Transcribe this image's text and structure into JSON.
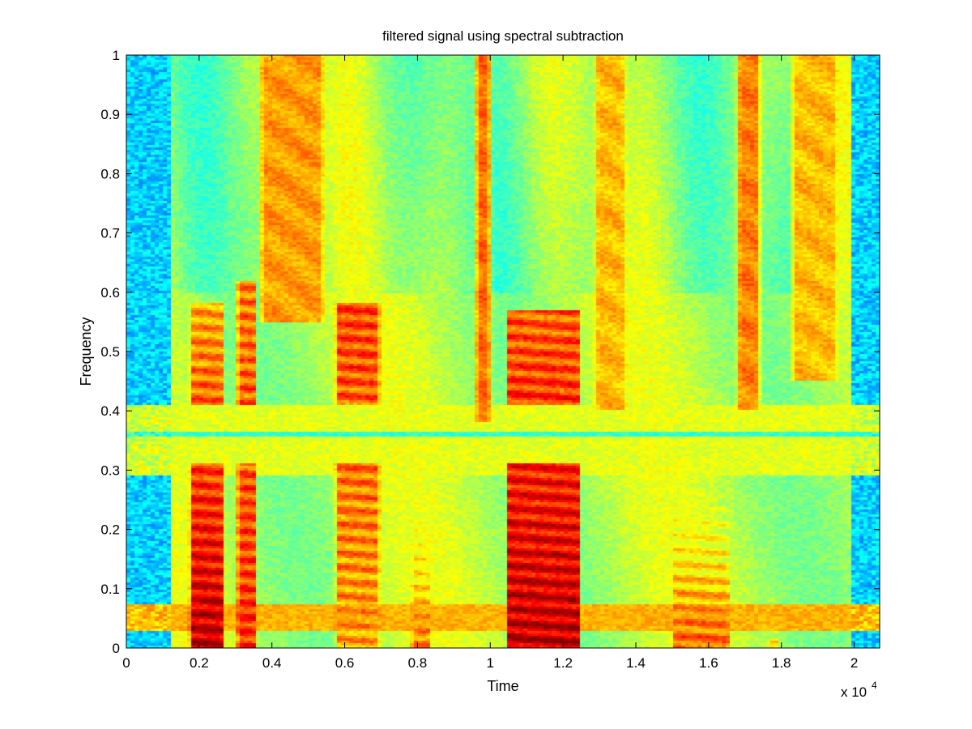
{
  "chart_data": {
    "type": "heatmap",
    "title": "filtered signal using spectral subtraction",
    "xlabel": "Time",
    "ylabel": "Frequency",
    "x_multiplier_label": "x 10",
    "x_multiplier_exponent": "4",
    "xlim": [
      0,
      20700
    ],
    "ylim": [
      0,
      1
    ],
    "xticks": [
      0,
      0.2,
      0.4,
      0.6,
      0.8,
      1,
      1.2,
      1.4,
      1.6,
      1.8,
      2
    ],
    "xtick_labels": [
      "0",
      "0.2",
      "0.4",
      "0.6",
      "0.8",
      "1",
      "1.2",
      "1.4",
      "1.6",
      "1.8",
      "2"
    ],
    "yticks": [
      0,
      0.1,
      0.2,
      0.3,
      0.4,
      0.5,
      0.6,
      0.7,
      0.8,
      0.9,
      1
    ],
    "ytick_labels": [
      "0",
      "0.1",
      "0.2",
      "0.3",
      "0.4",
      "0.5",
      "0.6",
      "0.7",
      "0.8",
      "0.9",
      "1"
    ],
    "colormap": "jet",
    "grid": false,
    "x_unit_scale": 10000,
    "speech_segments": [
      {
        "t0": 0.17,
        "t1": 0.27,
        "f_top": 0.58,
        "low_intensity": 1.0,
        "high_intensity": 0.78
      },
      {
        "t0": 0.3,
        "t1": 0.36,
        "f_top": 0.62,
        "low_intensity": 0.9,
        "high_intensity": 0.82
      },
      {
        "t0": 0.57,
        "t1": 0.7,
        "f_top": 0.58,
        "low_intensity": 0.78,
        "high_intensity": 0.88
      },
      {
        "t0": 0.78,
        "t1": 0.84,
        "f_top": 0.27,
        "low_intensity": 0.82,
        "high_intensity": 0.55
      },
      {
        "t0": 1.04,
        "t1": 1.25,
        "f_top": 0.57,
        "low_intensity": 1.0,
        "high_intensity": 0.85
      },
      {
        "t0": 1.5,
        "t1": 1.66,
        "f_top": 0.3,
        "low_intensity": 0.85,
        "high_intensity": 0.55
      },
      {
        "t0": 1.76,
        "t1": 1.8,
        "f_top": 0.12,
        "low_intensity": 0.7,
        "high_intensity": 0.5
      }
    ],
    "fricative_segments": [
      {
        "t0": 0.36,
        "t1": 0.55,
        "f_bottom": 0.55,
        "intensity": 0.75
      },
      {
        "t0": 0.95,
        "t1": 1.01,
        "f_bottom": 0.38,
        "intensity": 0.8
      },
      {
        "t0": 1.28,
        "t1": 1.38,
        "f_bottom": 0.4,
        "intensity": 0.72
      },
      {
        "t0": 1.67,
        "t1": 1.75,
        "f_bottom": 0.4,
        "intensity": 0.78
      },
      {
        "t0": 1.82,
        "t1": 1.96,
        "f_bottom": 0.45,
        "intensity": 0.72
      }
    ],
    "noise_bands": [
      {
        "f0": 0.0,
        "f1": 0.025,
        "intensity": 0.35
      },
      {
        "f0": 0.03,
        "f1": 0.075,
        "intensity": 0.7
      },
      {
        "f0": 0.29,
        "f1": 0.41,
        "intensity": 0.6
      },
      {
        "f0": 0.355,
        "f1": 0.365,
        "intensity": 0.42
      }
    ],
    "silence_regions": [
      {
        "t0": 0.0,
        "t1": 0.12
      },
      {
        "t0": 1.99,
        "t1": 2.07
      }
    ]
  }
}
